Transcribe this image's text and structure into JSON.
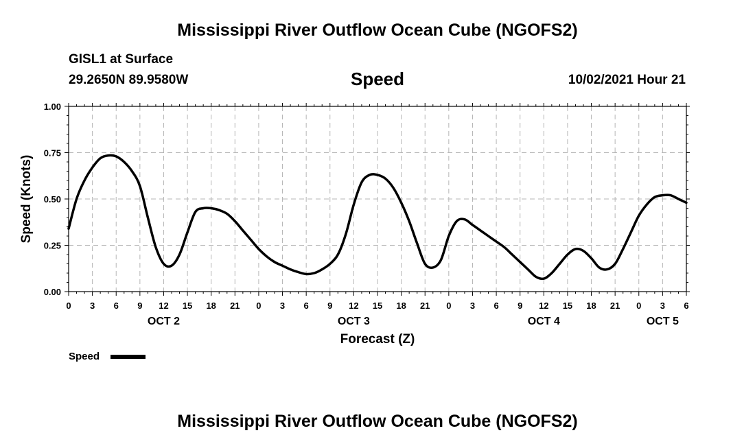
{
  "title": "Mississippi River Outflow Ocean Cube (NGOFS2)",
  "footer_title": "Mississippi River Outflow Ocean Cube (NGOFS2)",
  "station": {
    "name": "GISL1 at Surface",
    "coords": "29.2650N  89.9580W"
  },
  "variable": "Speed",
  "timestamp": "10/02/2021 Hour 21",
  "chart_data": {
    "type": "line",
    "xlabel": "Forecast (Z)",
    "ylabel": "Speed (Knots)",
    "ylim": [
      0,
      1.0
    ],
    "xlim_hours": [
      0,
      78
    ],
    "grid": true,
    "y_ticks": [
      "0.00",
      "0.25",
      "0.50",
      "0.75",
      "1.00"
    ],
    "y_tick_values": [
      0,
      0.25,
      0.5,
      0.75,
      1.0
    ],
    "x_tick_labels": [
      "0",
      "3",
      "6",
      "9",
      "12",
      "15",
      "18",
      "21",
      "0",
      "3",
      "6",
      "9",
      "12",
      "15",
      "18",
      "21",
      "0",
      "3",
      "6",
      "9",
      "12",
      "15",
      "18",
      "21",
      "0",
      "3",
      "6"
    ],
    "day_labels": [
      {
        "label": "OCT 2",
        "hour": 12
      },
      {
        "label": "OCT 3",
        "hour": 36
      },
      {
        "label": "OCT 4",
        "hour": 60
      },
      {
        "label": "OCT 5",
        "hour": 75
      }
    ],
    "series": [
      {
        "name": "Speed",
        "color": "#000000",
        "x": [
          0,
          1,
          2,
          3,
          4,
          5,
          6,
          7,
          8,
          9,
          10,
          11,
          12,
          13,
          14,
          15,
          16,
          17,
          18,
          19,
          20,
          21,
          22,
          23,
          24,
          25,
          26,
          27,
          28,
          29,
          30,
          31,
          32,
          33,
          34,
          35,
          36,
          37,
          38,
          39,
          40,
          41,
          42,
          43,
          44,
          45,
          46,
          47,
          48,
          49,
          50,
          51,
          52,
          53,
          54,
          55,
          56,
          57,
          58,
          59,
          60,
          61,
          62,
          63,
          64,
          65,
          66,
          67,
          68,
          69,
          70,
          71,
          72,
          73,
          74,
          75,
          76,
          77,
          78
        ],
        "y": [
          0.34,
          0.5,
          0.6,
          0.67,
          0.72,
          0.735,
          0.73,
          0.7,
          0.65,
          0.57,
          0.4,
          0.24,
          0.15,
          0.14,
          0.2,
          0.32,
          0.43,
          0.45,
          0.45,
          0.44,
          0.42,
          0.38,
          0.33,
          0.28,
          0.23,
          0.19,
          0.16,
          0.14,
          0.12,
          0.105,
          0.095,
          0.1,
          0.12,
          0.15,
          0.2,
          0.31,
          0.47,
          0.59,
          0.63,
          0.63,
          0.61,
          0.56,
          0.48,
          0.38,
          0.26,
          0.15,
          0.13,
          0.17,
          0.3,
          0.38,
          0.39,
          0.36,
          0.33,
          0.3,
          0.27,
          0.24,
          0.2,
          0.16,
          0.12,
          0.08,
          0.07,
          0.1,
          0.15,
          0.2,
          0.23,
          0.22,
          0.18,
          0.13,
          0.12,
          0.15,
          0.23,
          0.32,
          0.41,
          0.47,
          0.51,
          0.52,
          0.52,
          0.5,
          0.48
        ]
      }
    ]
  }
}
